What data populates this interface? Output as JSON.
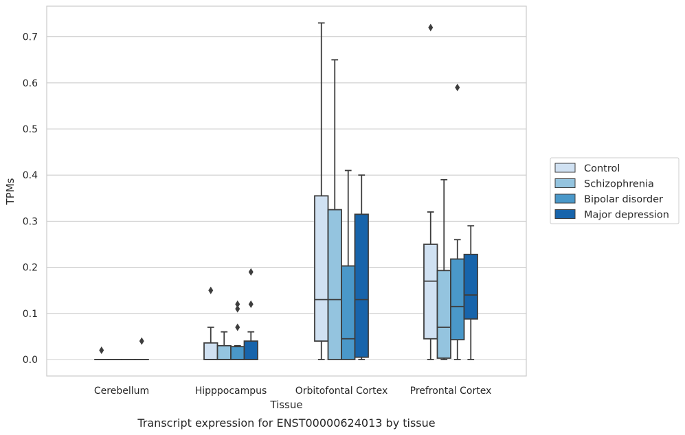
{
  "chart_data": {
    "type": "box",
    "title": "",
    "caption": "Transcript expression for ENST00000624013 by tissue",
    "xlabel": "Tissue",
    "ylabel": "TPMs",
    "ylim": [
      -0.035,
      0.77
    ],
    "yticks": [
      0.0,
      0.1,
      0.2,
      0.3,
      0.4,
      0.5,
      0.6,
      0.7
    ],
    "ytick_labels": [
      "0.0",
      "0.1",
      "0.2",
      "0.3",
      "0.4",
      "0.5",
      "0.6",
      "0.7"
    ],
    "grid": "horizontal",
    "legend_position": "right",
    "categories": [
      "Cerebellum",
      "Hipppocampus",
      "Orbitofontal Cortex",
      "Prefrontal Cortex"
    ],
    "series": [
      {
        "name": "Control",
        "color": "#d0e1f2",
        "boxes": [
          {
            "whislo": 0.0,
            "q1": 0.0,
            "med": 0.0,
            "q3": 0.0,
            "whishi": 0.0,
            "fliers": [
              0.02
            ]
          },
          {
            "whislo": 0.0,
            "q1": 0.0,
            "med": 0.0,
            "q3": 0.036,
            "whishi": 0.07,
            "fliers": [
              0.15
            ]
          },
          {
            "whislo": 0.0,
            "q1": 0.04,
            "med": 0.13,
            "q3": 0.355,
            "whishi": 0.73,
            "fliers": []
          },
          {
            "whislo": 0.0,
            "q1": 0.045,
            "med": 0.17,
            "q3": 0.25,
            "whishi": 0.32,
            "fliers": [
              0.72
            ]
          }
        ]
      },
      {
        "name": "Schizophrenia",
        "color": "#94c4df",
        "boxes": [
          {
            "whislo": 0.0,
            "q1": 0.0,
            "med": 0.0,
            "q3": 0.0,
            "whishi": 0.0,
            "fliers": []
          },
          {
            "whislo": 0.0,
            "q1": 0.0,
            "med": 0.0,
            "q3": 0.03,
            "whishi": 0.06,
            "fliers": []
          },
          {
            "whislo": 0.0,
            "q1": 0.0,
            "med": 0.13,
            "q3": 0.325,
            "whishi": 0.65,
            "fliers": []
          },
          {
            "whislo": 0.0,
            "q1": 0.003,
            "med": 0.07,
            "q3": 0.193,
            "whishi": 0.39,
            "fliers": []
          }
        ]
      },
      {
        "name": "Bipolar disorder",
        "color": "#4a98c9",
        "boxes": [
          {
            "whislo": 0.0,
            "q1": 0.0,
            "med": 0.0,
            "q3": 0.0,
            "whishi": 0.0,
            "fliers": []
          },
          {
            "whislo": 0.0,
            "q1": 0.0,
            "med": 0.0,
            "q3": 0.028,
            "whishi": 0.03,
            "fliers": [
              0.07,
              0.11,
              0.12
            ]
          },
          {
            "whislo": 0.0,
            "q1": 0.0,
            "med": 0.045,
            "q3": 0.203,
            "whishi": 0.41,
            "fliers": []
          },
          {
            "whislo": 0.0,
            "q1": 0.043,
            "med": 0.115,
            "q3": 0.218,
            "whishi": 0.26,
            "fliers": [
              0.59
            ]
          }
        ]
      },
      {
        "name": "Major depression",
        "color": "#1764ab",
        "boxes": [
          {
            "whislo": 0.0,
            "q1": 0.0,
            "med": 0.0,
            "q3": 0.0,
            "whishi": 0.0,
            "fliers": [
              0.04
            ]
          },
          {
            "whislo": 0.0,
            "q1": 0.0,
            "med": 0.0,
            "q3": 0.04,
            "whishi": 0.06,
            "fliers": [
              0.12,
              0.19
            ]
          },
          {
            "whislo": 0.0,
            "q1": 0.005,
            "med": 0.13,
            "q3": 0.315,
            "whishi": 0.4,
            "fliers": []
          },
          {
            "whislo": 0.0,
            "q1": 0.088,
            "med": 0.14,
            "q3": 0.228,
            "whishi": 0.29,
            "fliers": []
          }
        ]
      }
    ]
  }
}
